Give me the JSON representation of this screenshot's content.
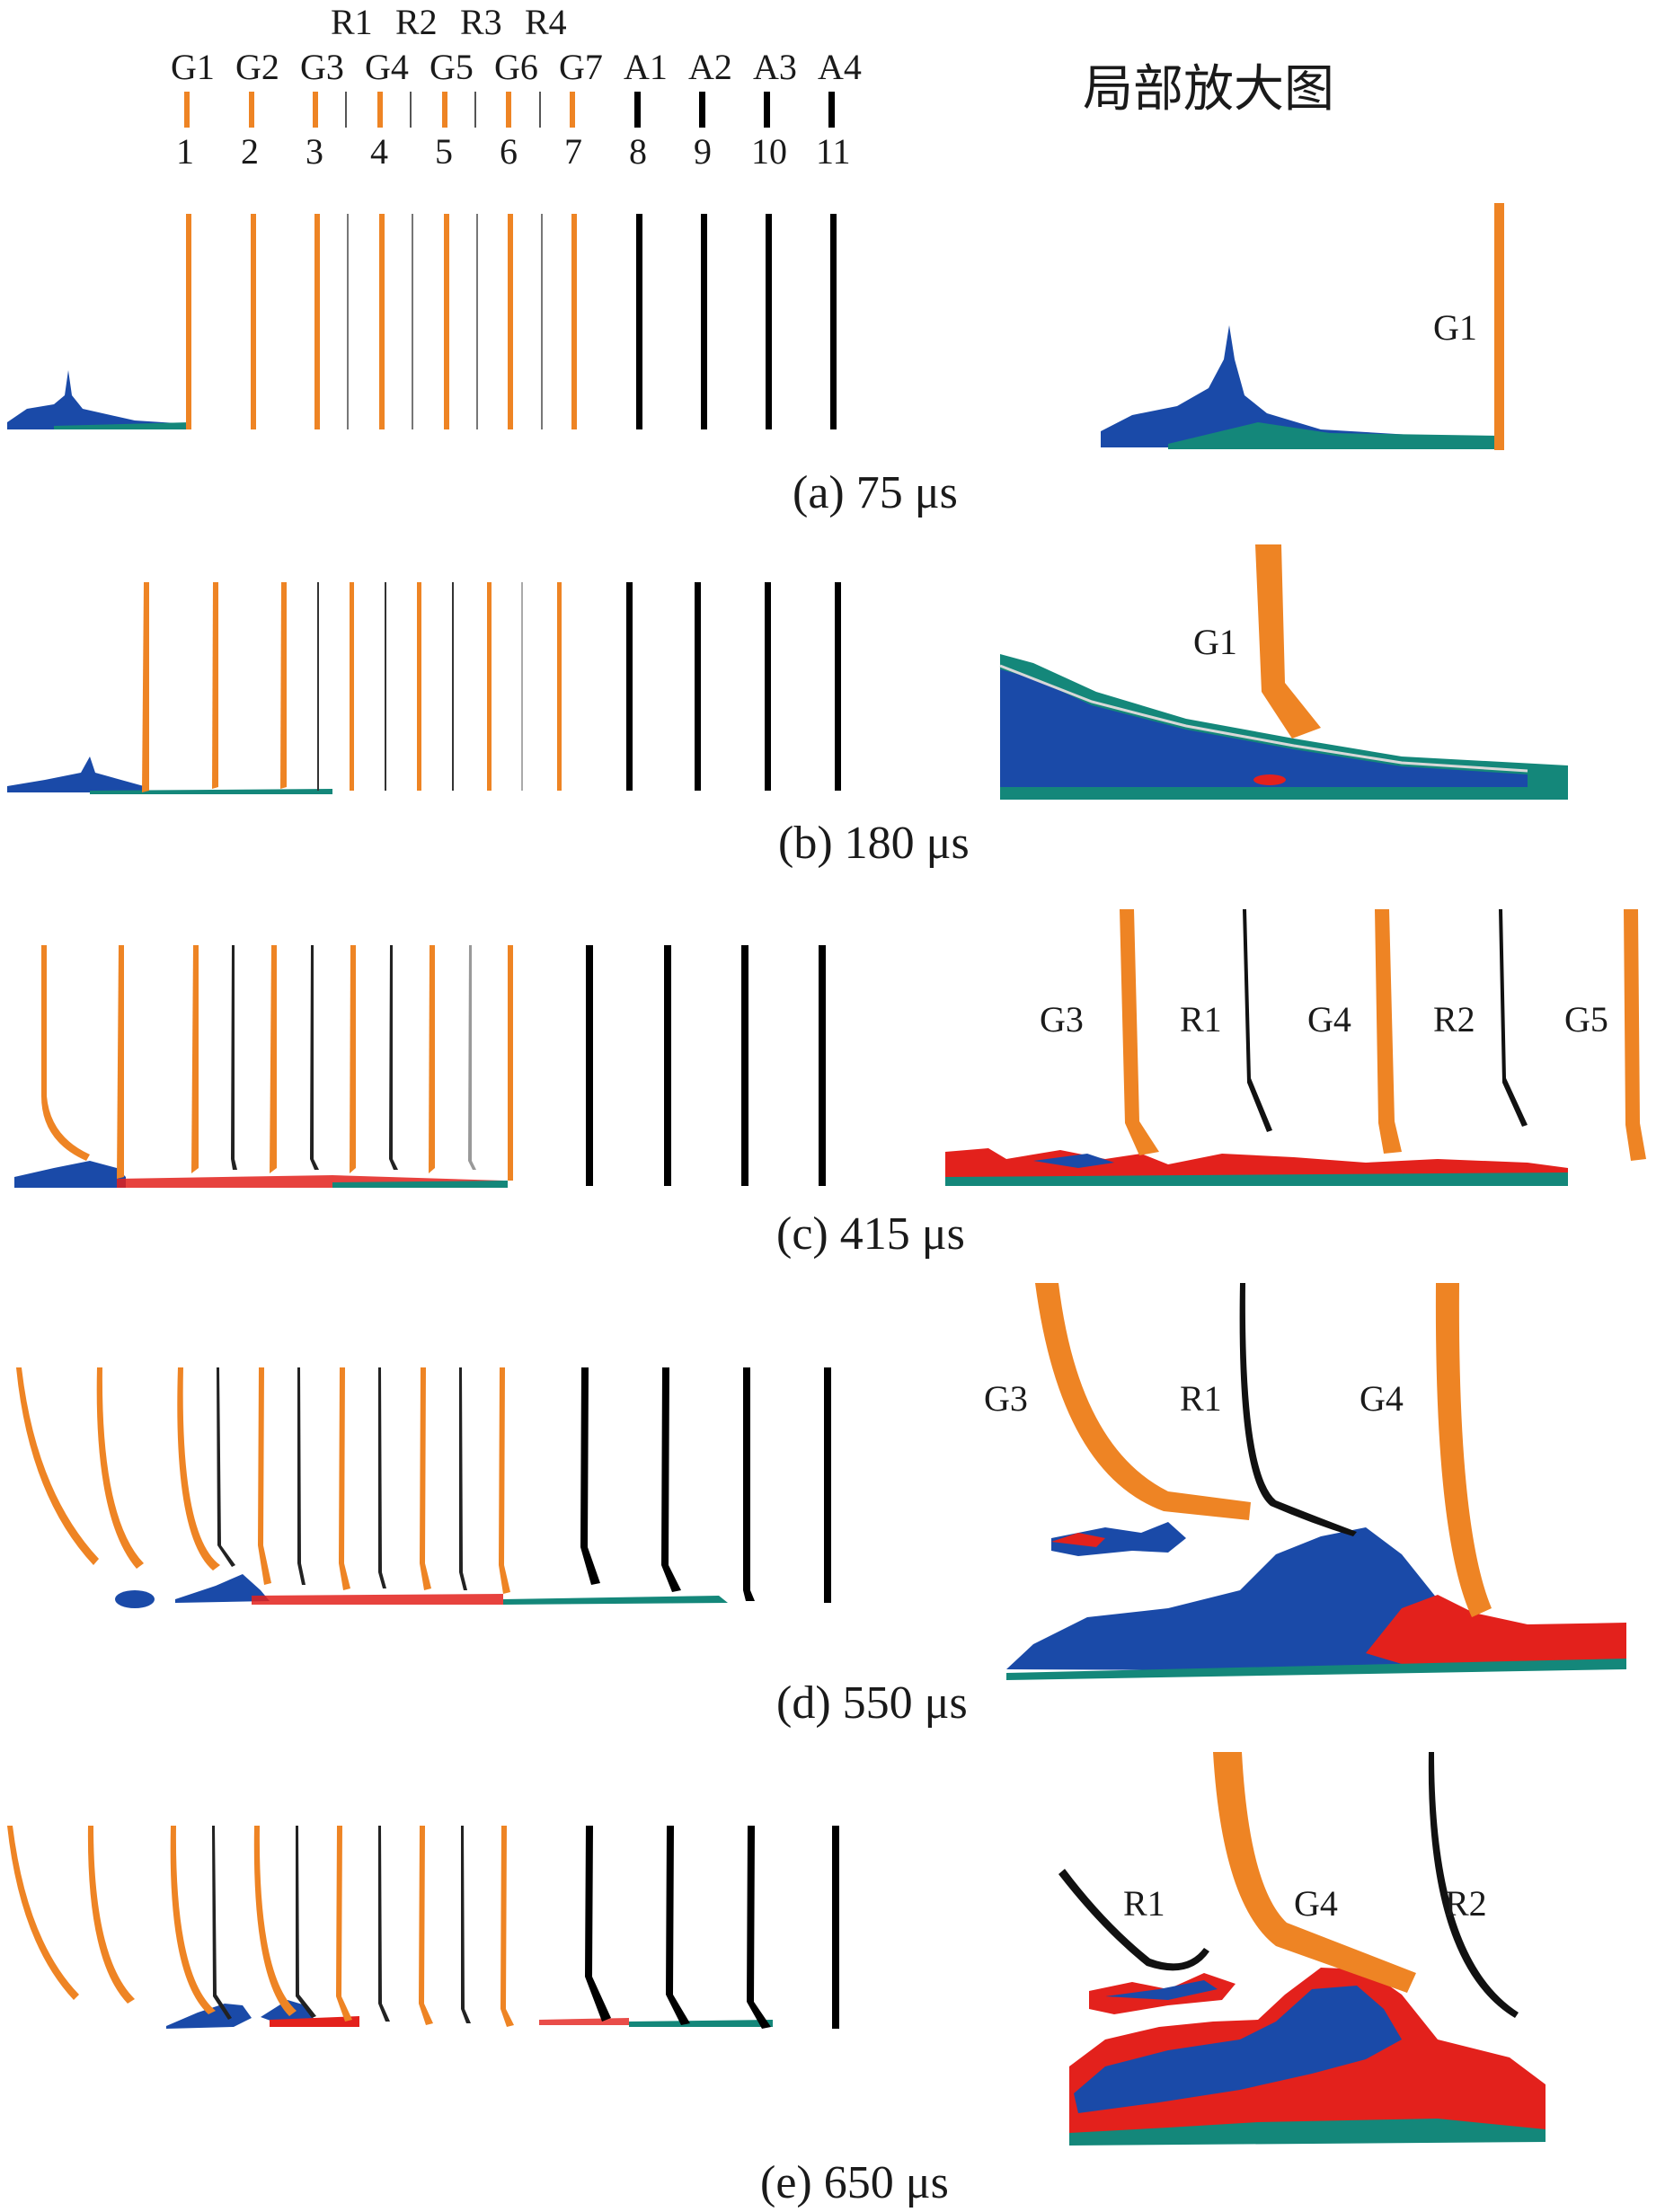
{
  "title": "局部放大图",
  "colors": {
    "glass": "#ee8424",
    "rubber": "#1a1a1a",
    "al": "#000000",
    "blue": "#1a4aa8",
    "teal": "#14877a",
    "red": "#e3211c"
  },
  "legend": {
    "top_names": [
      "R1",
      "R2",
      "R3",
      "R4"
    ],
    "names": [
      "G1",
      "G2",
      "G3",
      "G4",
      "G5",
      "G6",
      "G7",
      "A1",
      "A2",
      "A3",
      "A4"
    ],
    "numbers": [
      "1",
      "2",
      "3",
      "4",
      "5",
      "6",
      "7",
      "8",
      "9",
      "10",
      "11"
    ]
  },
  "panels": [
    {
      "id": "a",
      "caption": "(a) 75 μs",
      "zoom_labels": [
        "G1"
      ]
    },
    {
      "id": "b",
      "caption": "(b) 180 μs",
      "zoom_labels": [
        "G1"
      ]
    },
    {
      "id": "c",
      "caption": "(c) 415 μs",
      "zoom_labels": [
        "G3",
        "R1",
        "G4",
        "R2",
        "G5"
      ]
    },
    {
      "id": "d",
      "caption": "(d) 550 μs",
      "zoom_labels": [
        "G3",
        "R1",
        "G4"
      ]
    },
    {
      "id": "e",
      "caption": "(e) 650 μs",
      "zoom_labels": [
        "R1",
        "G4",
        "R2"
      ]
    }
  ]
}
